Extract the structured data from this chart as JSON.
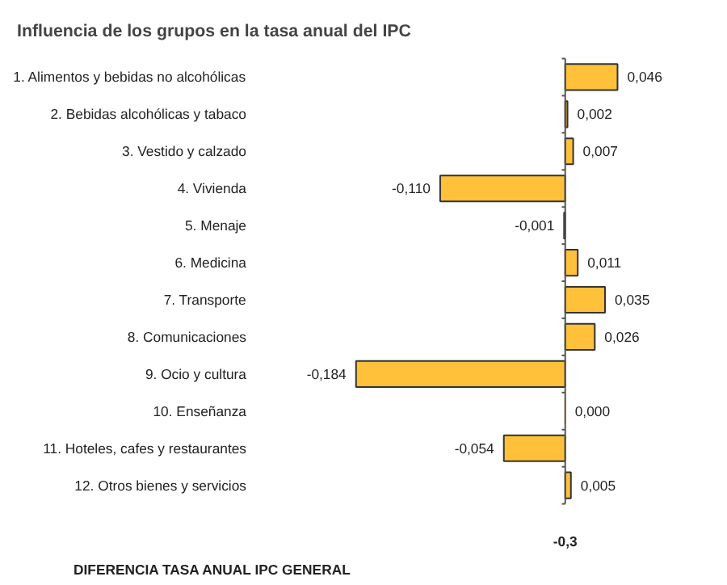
{
  "chart_data": {
    "type": "bar",
    "orientation": "horizontal",
    "title": "Influencia de los grupos en la tasa anual del IPC",
    "categories": [
      "1. Alimentos y bebidas no alcohólicas",
      "2. Bebidas alcohólicas y tabaco",
      "3. Vestido y calzado",
      "4. Vivienda",
      "5. Menaje",
      "6. Medicina",
      "7. Transporte",
      "8. Comunicaciones",
      "9. Ocio y cultura",
      "10. Enseñanza",
      "11. Hoteles, cafes y restaurantes",
      "12. Otros bienes y servicios"
    ],
    "values": [
      0.046,
      0.002,
      0.007,
      -0.11,
      -0.001,
      0.011,
      0.035,
      0.026,
      -0.184,
      0.0,
      -0.054,
      0.005
    ],
    "value_labels": [
      "0,046",
      "0,002",
      "0,007",
      "-0,110",
      "-0,001",
      "0,011",
      "0,035",
      "0,026",
      "-0,184",
      "0,000",
      "-0,054",
      "0,005"
    ],
    "color": "#ffc03a",
    "tick_labels": "y",
    "grid": false,
    "annotations": [
      "DIFERENCIA TASA ANUAL IPC GENERAL",
      "-0,3"
    ]
  }
}
